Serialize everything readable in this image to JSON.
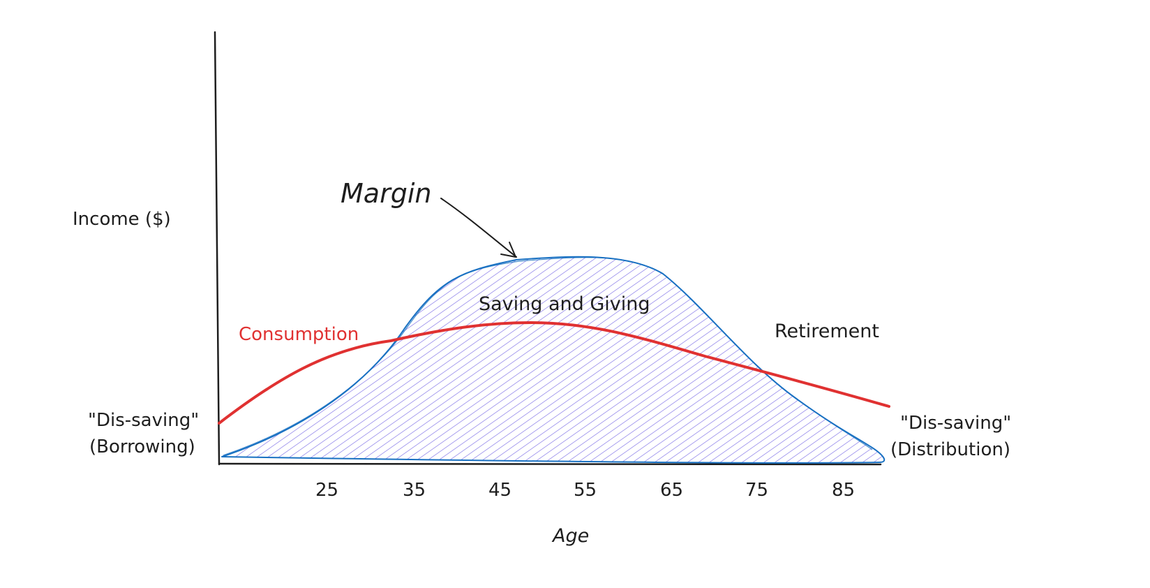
{
  "diagram": {
    "y_axis_label": "Income ($)",
    "x_axis_label": "Age",
    "annotations": {
      "margin": "Margin",
      "saving_giving": "Saving and Giving",
      "consumption": "Consumption",
      "retirement": "Retirement",
      "dissaving_left_1": "\"Dis-saving\"",
      "dissaving_left_2": "(Borrowing)",
      "dissaving_right_1": "\"Dis-saving\"",
      "dissaving_right_2": "(Distribution)"
    },
    "x_ticks": [
      "25",
      "35",
      "45",
      "55",
      "65",
      "75",
      "85"
    ],
    "colors": {
      "income_stroke": "#1971c2",
      "income_hatch": "#7c6ee6",
      "consumption": "#e03131",
      "ink": "#1e1e1e"
    }
  }
}
